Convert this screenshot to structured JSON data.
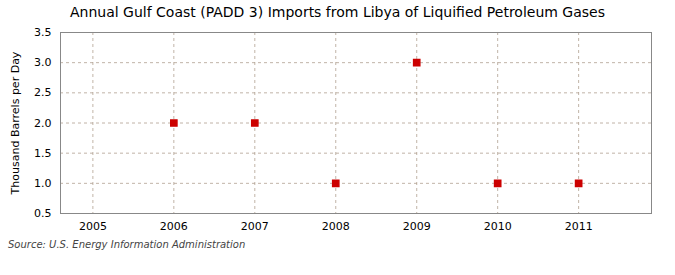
{
  "chart_data": {
    "type": "scatter",
    "title": "Annual Gulf Coast (PADD 3) Imports from Libya of Liquified Petroleum Gases",
    "ylabel": "Thousand Barrels per Day",
    "annotation": "Source: U.S. Energy Information Administration",
    "x": [
      2006,
      2007,
      2008,
      2009,
      2010,
      2011
    ],
    "values": [
      2.0,
      2.0,
      1.0,
      3.0,
      1.0,
      1.0
    ],
    "color": "#cc0000",
    "marker": "square",
    "xlim": [
      2004.6,
      2011.9
    ],
    "ylim": [
      0.5,
      3.5
    ],
    "xticks": [
      2005,
      2006,
      2007,
      2008,
      2009,
      2010,
      2011
    ],
    "yticks": [
      0.5,
      {
        "value": 1.0,
        "label": "1.0"
      },
      1.5,
      {
        "value": 2.0,
        "label": "2.0"
      },
      2.5,
      {
        "value": 3.0,
        "label": "3.0"
      },
      3.5
    ],
    "grid": true
  }
}
